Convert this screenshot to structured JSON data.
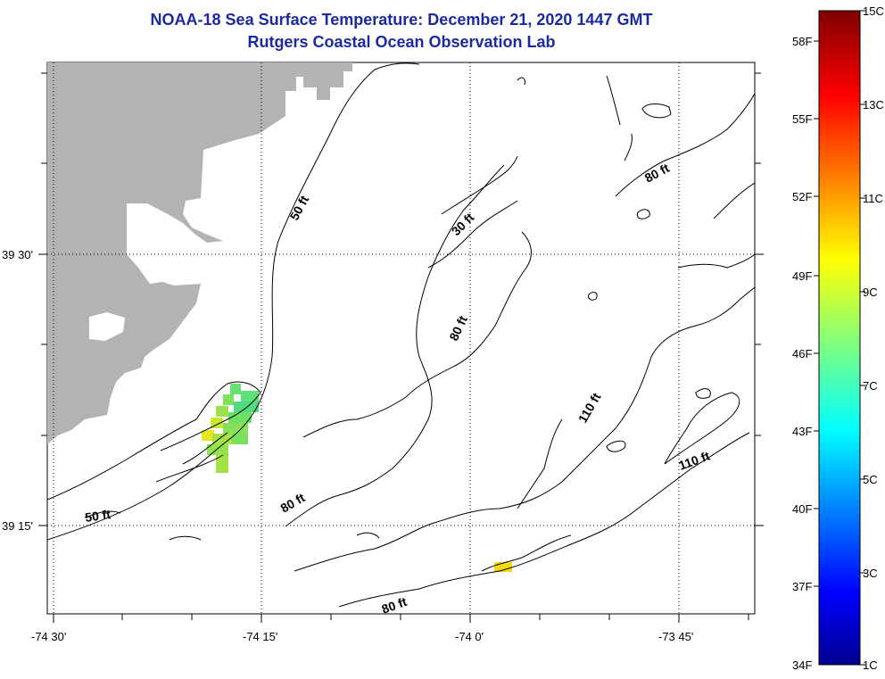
{
  "header": {
    "title": "NOAA-18 Sea Surface Temperature:  December 21, 2020 1447 GMT",
    "subtitle": "Rutgers Coastal Ocean Observation Lab"
  },
  "map": {
    "lon_labels": [
      "-74 30'",
      "-74 15'",
      "-74 0'",
      "-73 45'"
    ],
    "lat_labels": [
      "39 30'",
      "39 15'"
    ],
    "contour_labels": [
      "50 ft",
      "30 ft",
      "80 ft",
      "80 ft",
      "110 ft",
      "110 ft",
      "80 ft",
      "50 ft",
      "80 ft"
    ]
  },
  "colorbar": {
    "fahrenheit": [
      "58F",
      "55F",
      "52F",
      "49F",
      "46F",
      "43F",
      "40F",
      "37F",
      "34F"
    ],
    "celsius": [
      "15C",
      "13C",
      "11C",
      "9C",
      "7C",
      "5C",
      "3C",
      "1C"
    ],
    "range_c": [
      1,
      15
    ]
  },
  "colors": {
    "title": "#1c2aa0",
    "land": "#b3b3b3"
  }
}
